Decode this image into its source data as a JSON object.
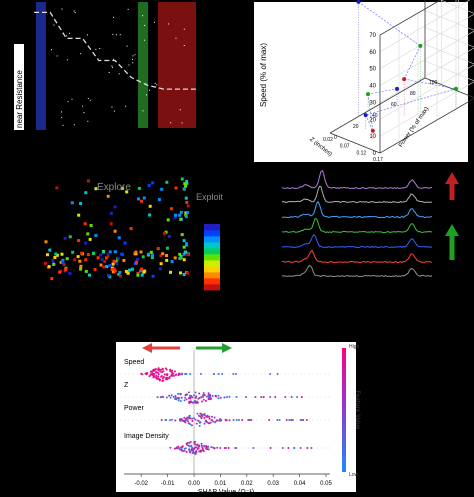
{
  "chart_data": [
    {
      "type": "line",
      "panel": "resistance-vs-step",
      "ylabel": "near Resistance",
      "series": [
        {
          "style": "dashed-white",
          "values": [
            0.92,
            0.92,
            0.72,
            0.72,
            0.55,
            0.55,
            0.42,
            0.36,
            0.33,
            0.33,
            0.33
          ]
        }
      ],
      "bands": [
        {
          "color": "#1a2a8c"
        },
        {
          "color": "#1f6e1f"
        },
        {
          "color": "#7a1010"
        }
      ]
    },
    {
      "type": "scatter",
      "panel": "3d-scatter",
      "ylabel": "Speed (% of max)",
      "xlabel": "Z (inches)",
      "zlabel": "Power (% of max)",
      "yticks": [
        "0",
        "10",
        "20",
        "30",
        "40",
        "50",
        "60",
        "70"
      ],
      "xticks": [
        "0.17",
        "0.12",
        "0.07",
        "0.02"
      ],
      "zticks": [
        "0",
        "20",
        "40",
        "60",
        "80",
        "100"
      ],
      "corner_label": "25000",
      "points": [
        {
          "color": "#1a1ad0",
          "speed": 68,
          "z": 0.02,
          "power": 30
        },
        {
          "color": "#1aa01a",
          "speed": 40,
          "z": 0.12,
          "power": 60
        },
        {
          "color": "#d01a1a",
          "speed": 22,
          "z": 0.1,
          "power": 50
        },
        {
          "color": "#1aa01a",
          "speed": 12,
          "z": 0.17,
          "power": 80
        },
        {
          "color": "#1a1ad0",
          "speed": 8,
          "z": 0.07,
          "power": 20
        },
        {
          "color": "#d01a1a",
          "speed": 6,
          "z": 0.12,
          "power": 10
        },
        {
          "color": "#1aa01a",
          "speed": 10,
          "z": 0.02,
          "power": 40
        },
        {
          "color": "#1a1ad0",
          "speed": 9,
          "z": 0.05,
          "power": 60
        }
      ]
    },
    {
      "type": "scatter",
      "panel": "explore-exploit",
      "annotations": [
        "Explore",
        "Exploit"
      ],
      "colorbar": [
        "#c21010",
        "#ff3000",
        "#ff8800",
        "#ffd000",
        "#c8f000",
        "#60e000",
        "#00d060",
        "#00c8c8",
        "#0090ff",
        "#0040ff",
        "#2020c0"
      ]
    },
    {
      "type": "line",
      "panel": "spectra",
      "series": [
        {
          "color": "#b07ad8"
        },
        {
          "color": "#b0b0b0"
        },
        {
          "color": "#4aa0ff"
        },
        {
          "color": "#40c040"
        },
        {
          "color": "#3060ff"
        },
        {
          "color": "#ff4040"
        },
        {
          "color": "#909090"
        }
      ]
    },
    {
      "type": "scatter",
      "panel": "shap-summary",
      "title": "",
      "xlabel": "SHAP Value (Ω⁻¹)",
      "xlim": [
        -0.025,
        0.05
      ],
      "xticks": [
        "-0.02",
        "-0.01",
        "0.00",
        "0.01",
        "0.02",
        "0.03",
        "0.04",
        "0.05"
      ],
      "features": [
        "Speed",
        "Z",
        "Power",
        "Image Density"
      ],
      "colorbar_label": "Feature Value",
      "colorbar_high": "High",
      "colorbar_low": "Low",
      "colors": {
        "high": "#ff0080",
        "low": "#1e88ff"
      }
    }
  ]
}
